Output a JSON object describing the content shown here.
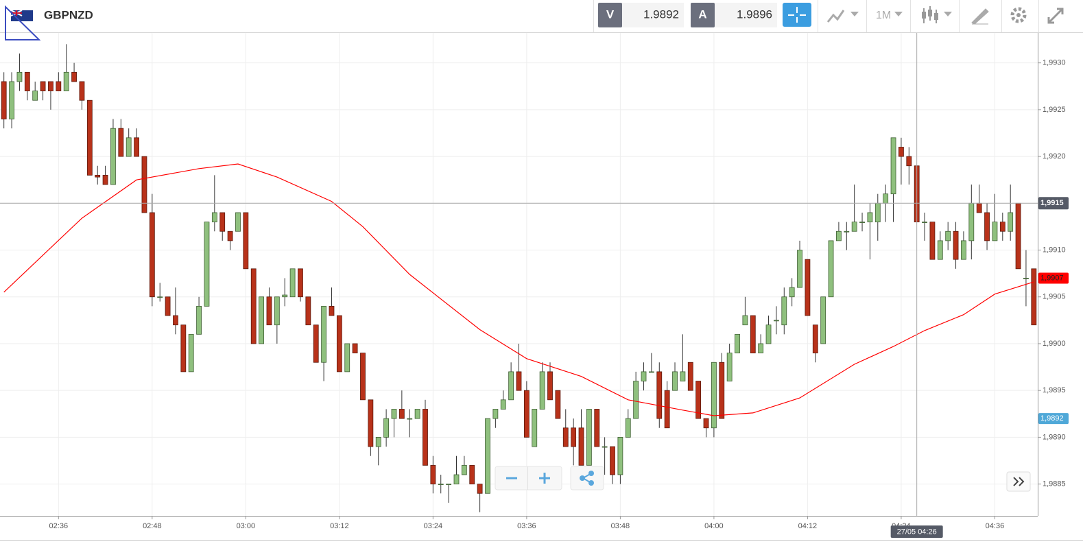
{
  "header": {
    "symbol": "GBPNZD",
    "bid_label": "V",
    "bid": 1.9892,
    "ask_label": "A",
    "ask": 1.9896,
    "timeframe": "1M"
  },
  "chart_data": {
    "type": "candlestick",
    "up_color": "#8fc07e",
    "down_color": "#b8321a",
    "x": [
      149,
      150,
      151,
      152,
      153,
      154,
      155,
      156,
      157,
      158,
      159,
      160,
      161,
      162,
      163,
      164,
      165,
      166,
      167,
      168,
      169,
      170,
      171,
      172,
      173,
      174,
      175,
      176,
      177,
      178,
      179,
      180,
      181,
      182,
      183,
      184,
      185,
      186,
      187,
      188,
      189,
      190,
      191,
      192,
      193,
      194,
      195,
      196,
      197,
      198,
      199,
      200,
      201,
      202,
      203,
      204,
      205,
      206,
      207,
      208,
      209,
      210,
      211,
      212,
      213,
      214,
      215,
      216,
      217,
      218,
      219,
      220,
      221,
      222,
      223,
      224,
      225,
      226,
      227,
      228,
      229,
      230,
      231,
      232,
      233,
      234,
      235,
      236,
      237,
      238,
      239,
      240,
      241,
      242,
      243,
      244,
      245,
      246,
      247,
      248,
      249,
      250,
      251,
      252,
      253,
      254,
      255,
      256,
      257,
      258,
      259,
      260,
      261,
      262,
      263,
      264,
      265,
      266,
      267,
      268,
      269,
      270,
      271,
      272,
      273,
      274,
      275,
      276,
      277,
      278,
      279,
      280,
      281
    ],
    "ohlc": [
      [
        1.9928,
        1.9929,
        1.9923,
        1.9924
      ],
      [
        1.9924,
        1.9929,
        1.9923,
        1.9928
      ],
      [
        1.9928,
        1.9931,
        1.9927,
        1.9929
      ],
      [
        1.9929,
        1.9929,
        1.9926,
        1.9927
      ],
      [
        1.9926,
        1.9928,
        1.9926,
        1.9927
      ],
      [
        1.9928,
        1.9928,
        1.9926,
        1.9927
      ],
      [
        1.9928,
        1.9928,
        1.9925,
        1.9927
      ],
      [
        1.9928,
        1.9929,
        1.9927,
        1.9927
      ],
      [
        1.9927,
        1.9932,
        1.9927,
        1.9929
      ],
      [
        1.9929,
        1.993,
        1.9928,
        1.9928
      ],
      [
        1.9928,
        1.9928,
        1.9925,
        1.9926
      ],
      [
        1.9926,
        1.9926,
        1.9918,
        1.9918
      ],
      [
        1.9918,
        1.9919,
        1.9917,
        1.99178
      ],
      [
        1.9918,
        1.9919,
        1.9917,
        1.9917
      ],
      [
        1.9917,
        1.9924,
        1.9917,
        1.9923
      ],
      [
        1.9923,
        1.9924,
        1.992,
        1.992
      ],
      [
        1.992,
        1.9923,
        1.992,
        1.9922
      ],
      [
        1.9922,
        1.9923,
        1.992,
        1.992
      ],
      [
        1.992,
        1.992,
        1.9914,
        1.9914
      ],
      [
        1.9914,
        1.9916,
        1.9904,
        1.9905
      ],
      [
        1.9905,
        1.99065,
        1.99045,
        1.9905
      ],
      [
        1.9905,
        1.9905,
        1.9903,
        1.9903
      ],
      [
        1.9903,
        1.9906,
        1.9901,
        1.9902
      ],
      [
        1.9902,
        1.9902,
        1.9897,
        1.9897
      ],
      [
        1.9897,
        1.9901,
        1.9897,
        1.9901
      ],
      [
        1.9901,
        1.9905,
        1.9901,
        1.9904
      ],
      [
        1.9904,
        1.9913,
        1.9904,
        1.9913
      ],
      [
        1.9913,
        1.9918,
        1.9912,
        1.9914
      ],
      [
        1.9914,
        1.9914,
        1.9911,
        1.9912
      ],
      [
        1.9912,
        1.9912,
        1.991,
        1.9911
      ],
      [
        1.9912,
        1.9914,
        1.9912,
        1.9914
      ],
      [
        1.9914,
        1.9914,
        1.9908,
        1.9908
      ],
      [
        1.9908,
        1.9908,
        1.99,
        1.99
      ],
      [
        1.99,
        1.9905,
        1.99,
        1.9905
      ],
      [
        1.9905,
        1.9906,
        1.9902,
        1.9902
      ],
      [
        1.9902,
        1.9905,
        1.99,
        1.9905
      ],
      [
        1.9905,
        1.9907,
        1.9904,
        1.99052
      ],
      [
        1.9905,
        1.9908,
        1.9905,
        1.9908
      ],
      [
        1.9908,
        1.9908,
        1.99045,
        1.9905
      ],
      [
        1.9905,
        1.9905,
        1.9902,
        1.9902
      ],
      [
        1.9902,
        1.9902,
        1.9898,
        1.9898
      ],
      [
        1.9898,
        1.9904,
        1.9896,
        1.9904
      ],
      [
        1.9904,
        1.9906,
        1.9903,
        1.9903
      ],
      [
        1.9903,
        1.9903,
        1.9897,
        1.9897
      ],
      [
        1.9897,
        1.99,
        1.9897,
        1.99
      ],
      [
        1.99,
        1.99,
        1.9899,
        1.9899
      ],
      [
        1.9899,
        1.9899,
        1.9894,
        1.9894
      ],
      [
        1.9894,
        1.9894,
        1.9888,
        1.9889
      ],
      [
        1.9889,
        1.989,
        1.9887,
        1.989
      ],
      [
        1.989,
        1.9893,
        1.9889,
        1.9892
      ],
      [
        1.9892,
        1.9893,
        1.989,
        1.9893
      ],
      [
        1.9893,
        1.9895,
        1.9892,
        1.9892
      ],
      [
        1.9892,
        1.9893,
        1.989,
        1.9892
      ],
      [
        1.9892,
        1.9893,
        1.9892,
        1.9893
      ],
      [
        1.9893,
        1.9894,
        1.9887,
        1.9887
      ],
      [
        1.9887,
        1.9888,
        1.9884,
        1.9885
      ],
      [
        1.9885,
        1.9886,
        1.9884,
        1.9885
      ],
      [
        1.9885,
        1.9885,
        1.9883,
        1.9885
      ],
      [
        1.9885,
        1.9888,
        1.9885,
        1.9886
      ],
      [
        1.9886,
        1.9888,
        1.9886,
        1.9887
      ],
      [
        1.9887,
        1.9887,
        1.9885,
        1.9885
      ],
      [
        1.9885,
        1.9885,
        1.9882,
        1.9884
      ],
      [
        1.9884,
        1.9892,
        1.9884,
        1.9892
      ],
      [
        1.9892,
        1.9893,
        1.9891,
        1.9893
      ],
      [
        1.9893,
        1.9895,
        1.9893,
        1.9894
      ],
      [
        1.9894,
        1.9898,
        1.9894,
        1.9897
      ],
      [
        1.9897,
        1.99,
        1.9895,
        1.9895
      ],
      [
        1.9895,
        1.9896,
        1.989,
        1.989
      ],
      [
        1.9889,
        1.9893,
        1.9889,
        1.9893
      ],
      [
        1.9893,
        1.9898,
        1.9893,
        1.9897
      ],
      [
        1.9897,
        1.9898,
        1.9894,
        1.9894
      ],
      [
        1.9895,
        1.9895,
        1.9892,
        1.9892
      ],
      [
        1.9891,
        1.9893,
        1.9889,
        1.9889
      ],
      [
        1.9891,
        1.9892,
        1.9887,
        1.9889
      ],
      [
        1.9891,
        1.9893,
        1.9887,
        1.9887
      ],
      [
        1.9887,
        1.9893,
        1.9887,
        1.9893
      ],
      [
        1.9893,
        1.9893,
        1.9889,
        1.9889
      ],
      [
        1.9889,
        1.989,
        1.9886,
        1.9889
      ],
      [
        1.9889,
        1.9889,
        1.9885,
        1.9886
      ],
      [
        1.9886,
        1.989,
        1.9885,
        1.989
      ],
      [
        1.989,
        1.9893,
        1.989,
        1.9892
      ],
      [
        1.9892,
        1.9897,
        1.9892,
        1.9896
      ],
      [
        1.9896,
        1.9898,
        1.9895,
        1.9897
      ],
      [
        1.9897,
        1.9899,
        1.9897,
        1.9897
      ],
      [
        1.9897,
        1.9898,
        1.9891,
        1.9892
      ],
      [
        1.9895,
        1.9896,
        1.9891,
        1.9891
      ],
      [
        1.9895,
        1.9898,
        1.9895,
        1.9897
      ],
      [
        1.9896,
        1.9901,
        1.9896,
        1.9897
      ],
      [
        1.9898,
        1.9898,
        1.9895,
        1.9895
      ],
      [
        1.9896,
        1.9896,
        1.9892,
        1.9892
      ],
      [
        1.9892,
        1.9892,
        1.989,
        1.9891
      ],
      [
        1.9891,
        1.9898,
        1.989,
        1.9898
      ],
      [
        1.9898,
        1.9899,
        1.9892,
        1.9892
      ],
      [
        1.9896,
        1.99,
        1.9896,
        1.9899
      ],
      [
        1.9899,
        1.9901,
        1.9899,
        1.9901
      ],
      [
        1.9902,
        1.9905,
        1.9902,
        1.9903
      ],
      [
        1.9903,
        1.9903,
        1.9899,
        1.9899
      ],
      [
        1.9899,
        1.9901,
        1.9899,
        1.99
      ],
      [
        1.99,
        1.9903,
        1.99,
        1.9902
      ],
      [
        1.99025,
        1.9904,
        1.9901,
        1.99025
      ],
      [
        1.9902,
        1.9906,
        1.9901,
        1.9905
      ],
      [
        1.9905,
        1.9907,
        1.9904,
        1.9906
      ],
      [
        1.9906,
        1.9911,
        1.9906,
        1.991
      ],
      [
        1.9909,
        1.9909,
        1.9903,
        1.9903
      ],
      [
        1.9902,
        1.9902,
        1.9898,
        1.9899
      ],
      [
        1.99,
        1.9905,
        1.99,
        1.9905
      ],
      [
        1.9905,
        1.9911,
        1.9905,
        1.9911
      ],
      [
        1.9911,
        1.9913,
        1.9911,
        1.9912
      ],
      [
        1.9912,
        1.9913,
        1.991,
        1.9912
      ],
      [
        1.9912,
        1.9917,
        1.9912,
        1.9913
      ],
      [
        1.9913,
        1.9914,
        1.9912,
        1.9913
      ],
      [
        1.9913,
        1.9915,
        1.9909,
        1.9914
      ],
      [
        1.9913,
        1.9916,
        1.9911,
        1.9915
      ],
      [
        1.9915,
        1.9917,
        1.9913,
        1.9916
      ],
      [
        1.9916,
        1.9922,
        1.9913,
        1.9922
      ],
      [
        1.9921,
        1.9922,
        1.9917,
        1.992
      ],
      [
        1.992,
        1.9921,
        1.9917,
        1.9919
      ],
      [
        1.9919,
        1.9919,
        1.9913,
        1.9913
      ],
      [
        1.9913,
        1.9914,
        1.9911,
        1.9913
      ],
      [
        1.9913,
        1.9913,
        1.9909,
        1.9909
      ],
      [
        1.9909,
        1.9912,
        1.9909,
        1.9911
      ],
      [
        1.9911,
        1.9913,
        1.991,
        1.9912
      ],
      [
        1.9912,
        1.9913,
        1.9908,
        1.9909
      ],
      [
        1.9909,
        1.9912,
        1.9909,
        1.9911
      ],
      [
        1.9911,
        1.9917,
        1.9909,
        1.9915
      ],
      [
        1.9915,
        1.9917,
        1.9914,
        1.9914
      ],
      [
        1.9914,
        1.9915,
        1.991,
        1.9911
      ],
      [
        1.9911,
        1.9916,
        1.9911,
        1.9913
      ],
      [
        1.9913,
        1.9914,
        1.9911,
        1.9912
      ],
      [
        1.9912,
        1.9917,
        1.9911,
        1.9914
      ],
      [
        1.9915,
        1.9915,
        1.9908,
        1.9908
      ],
      [
        1.9907,
        1.991,
        1.9904,
        1.9907
      ],
      [
        1.9908,
        1.9908,
        1.9902,
        1.9902
      ]
    ],
    "lines": [
      {
        "color": "#ff0000",
        "x": [
          149,
          159,
          166,
          174,
          179,
          184,
          191,
          195,
          201,
          210,
          216,
          223,
          229,
          236,
          240,
          245,
          251,
          258,
          263,
          267,
          272,
          276,
          281
        ],
        "values": [
          1.99055,
          1.99134,
          1.99175,
          1.99187,
          1.99192,
          1.99178,
          1.99152,
          1.99125,
          1.99074,
          1.99015,
          1.98984,
          1.98965,
          1.9894,
          1.98929,
          1.98923,
          1.98926,
          1.98942,
          1.98978,
          1.98997,
          1.99014,
          1.99031,
          1.99053,
          1.99066
        ]
      }
    ],
    "xlim": [
      148.5,
      281.5
    ],
    "xticks": [
      {
        "value": 156,
        "label": "02:36"
      },
      {
        "value": 168,
        "label": "02:48"
      },
      {
        "value": 180,
        "label": "03:00"
      },
      {
        "value": 192,
        "label": "03:12"
      },
      {
        "value": 204,
        "label": "03:24"
      },
      {
        "value": 216,
        "label": "03:36"
      },
      {
        "value": 228,
        "label": "03:48"
      },
      {
        "value": 240,
        "label": "04:00"
      },
      {
        "value": 252,
        "label": "04:12"
      },
      {
        "value": 264,
        "label": "04:24"
      },
      {
        "value": 276,
        "label": "04:36"
      }
    ],
    "ylim": [
      1.98816,
      1.99332
    ],
    "yticks": [
      {
        "value": 1.9885,
        "label": "1,9885"
      },
      {
        "value": 1.989,
        "label": "1,9890"
      },
      {
        "value": 1.9895,
        "label": "1,9895"
      },
      {
        "value": 1.99,
        "label": "1,9900"
      },
      {
        "value": 1.9905,
        "label": "1,9905"
      },
      {
        "value": 1.991,
        "label": "1,9910"
      },
      {
        "value": 1.9915,
        "label": "1,9915"
      },
      {
        "value": 1.992,
        "label": "1,9920"
      },
      {
        "value": 1.9925,
        "label": "1,9925"
      },
      {
        "value": 1.993,
        "label": "1,9930"
      }
    ],
    "grid": true,
    "crosshair": {
      "x": {
        "value": 266,
        "label": "27/05 04:26"
      },
      "y": {
        "value": 1.9915,
        "label": "1,9915"
      },
      "color": "#555a66"
    },
    "price_tags": [
      {
        "value": 1.9907,
        "label": "1,9907",
        "color": "#ff0000"
      },
      {
        "value": 1.9892,
        "label": "1,9892",
        "color": "#4fa8d8"
      }
    ]
  }
}
